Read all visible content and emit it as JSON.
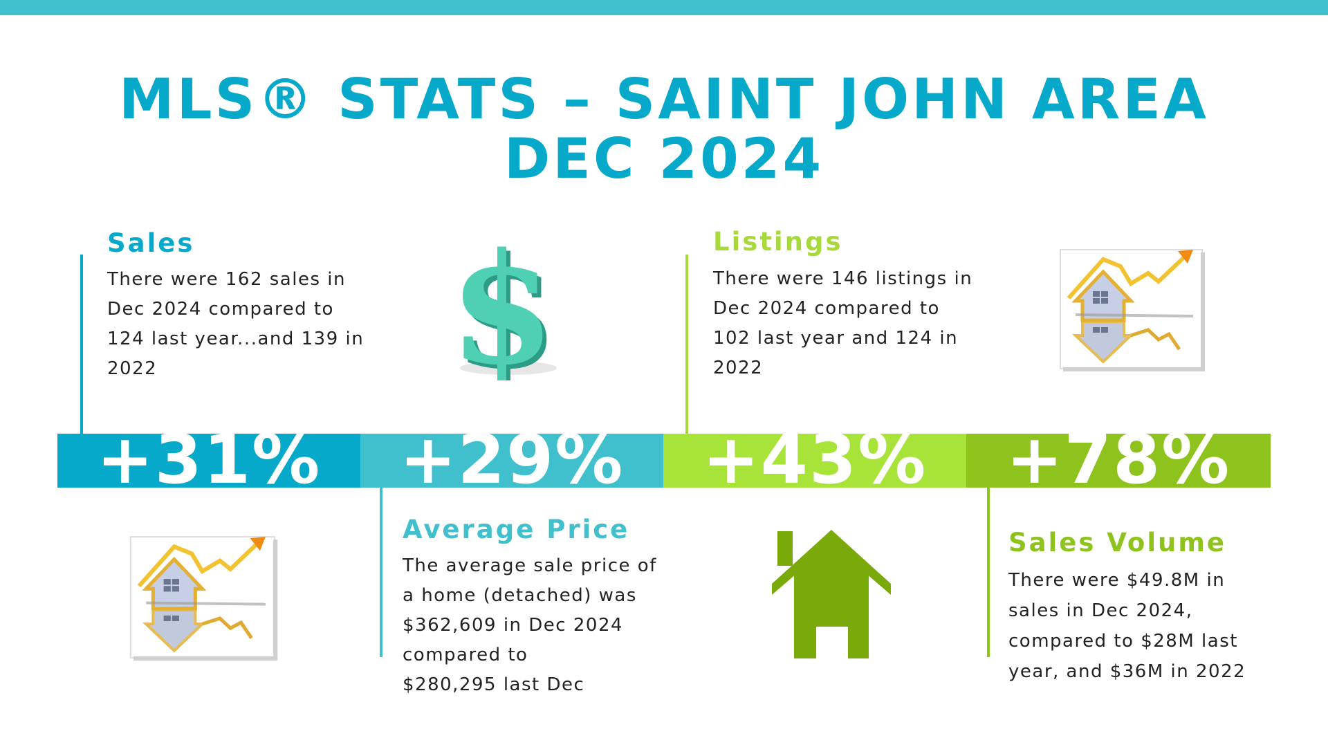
{
  "header": {
    "title_line1": "MLS® STATS – SAINT JOHN AREA",
    "title_line2": "DEC 2024"
  },
  "colors": {
    "top_bar": "#40bfcd",
    "title": "#06a9c9",
    "sales": "#06a9c9",
    "average_price": "#40bfcd",
    "listings": "#a8d93a",
    "sales_volume": "#8ec21c"
  },
  "metrics": {
    "sales": {
      "heading": "Sales",
      "lines": [
        "There were 162 sales in",
        "Dec 2024 compared to",
        "124 last year...and 139 in",
        "2022"
      ],
      "change": "+31%"
    },
    "average_price": {
      "heading": "Average Price",
      "lines": [
        "The average sale price of",
        "a home (detached) was",
        "$362,609 in Dec 2024",
        "compared to",
        "$280,295 last Dec"
      ],
      "change": "+29%"
    },
    "listings": {
      "heading": "Listings",
      "lines": [
        "There were 146 listings in",
        "Dec 2024 compared to",
        "102 last year and 124 in",
        "2022"
      ],
      "change": "+43%"
    },
    "sales_volume": {
      "heading": "Sales Volume",
      "lines": [
        "There were $49.8M in",
        "sales in Dec 2024,",
        "compared to $28M last",
        "year, and $36M in 2022"
      ],
      "change": "+78%"
    }
  },
  "icons": {
    "dollar": "dollar-sign-icon",
    "house_chart": "house-chart-icon",
    "house": "house-icon"
  }
}
